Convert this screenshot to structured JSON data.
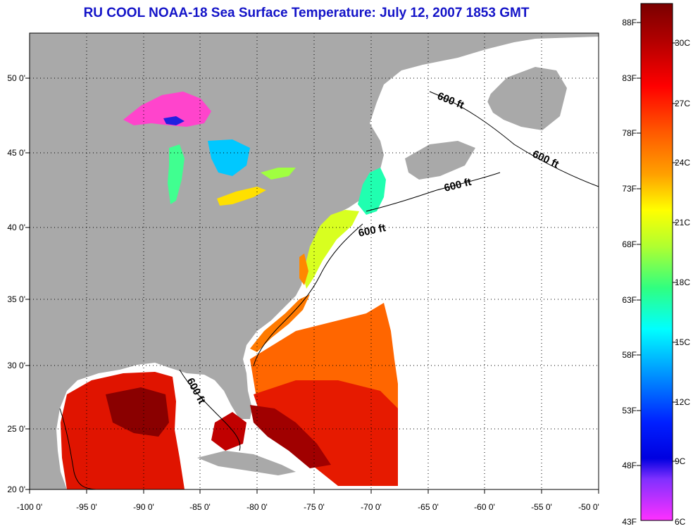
{
  "title": "RU COOL  NOAA-18  Sea Surface Temperature:  July 12, 2007 1853 GMT",
  "map": {
    "lon_labels": [
      "-100 0'",
      "-95 0'",
      "-90 0'",
      "-85 0'",
      "-80 0'",
      "-75 0'",
      "-70 0'",
      "-65 0'",
      "-60 0'",
      "-55 0'",
      "-50 0'"
    ],
    "lat_labels": [
      "50 0'",
      "45 0'",
      "40 0'",
      "35 0'",
      "30 0'",
      "25 0'",
      "20 0'"
    ],
    "contour_label": "600 ft",
    "contour_labels": [
      "600 ft",
      "600 ft",
      "600 ft",
      "600 ft",
      "600 ft"
    ],
    "colors": {
      "land": "#a9a9a9",
      "no_data": "#ffffff",
      "grid": "#000000"
    }
  },
  "colorbar": {
    "fahrenheit_labels": [
      "88F",
      "83F",
      "78F",
      "73F",
      "68F",
      "63F",
      "58F",
      "53F",
      "48F",
      "43F"
    ],
    "celsius_labels": [
      "30C",
      "27C",
      "24C",
      "21C",
      "18C",
      "15C",
      "12C",
      "9C",
      "6C"
    ],
    "colors_top_to_bottom": [
      "#7a0000",
      "#c80000",
      "#ff1a00",
      "#ff6a00",
      "#ffb000",
      "#ffff00",
      "#a0ff40",
      "#20ff80",
      "#00ffff",
      "#0090ff",
      "#0010ff",
      "#1000c0",
      "#a040ff",
      "#ff30ff"
    ]
  }
}
